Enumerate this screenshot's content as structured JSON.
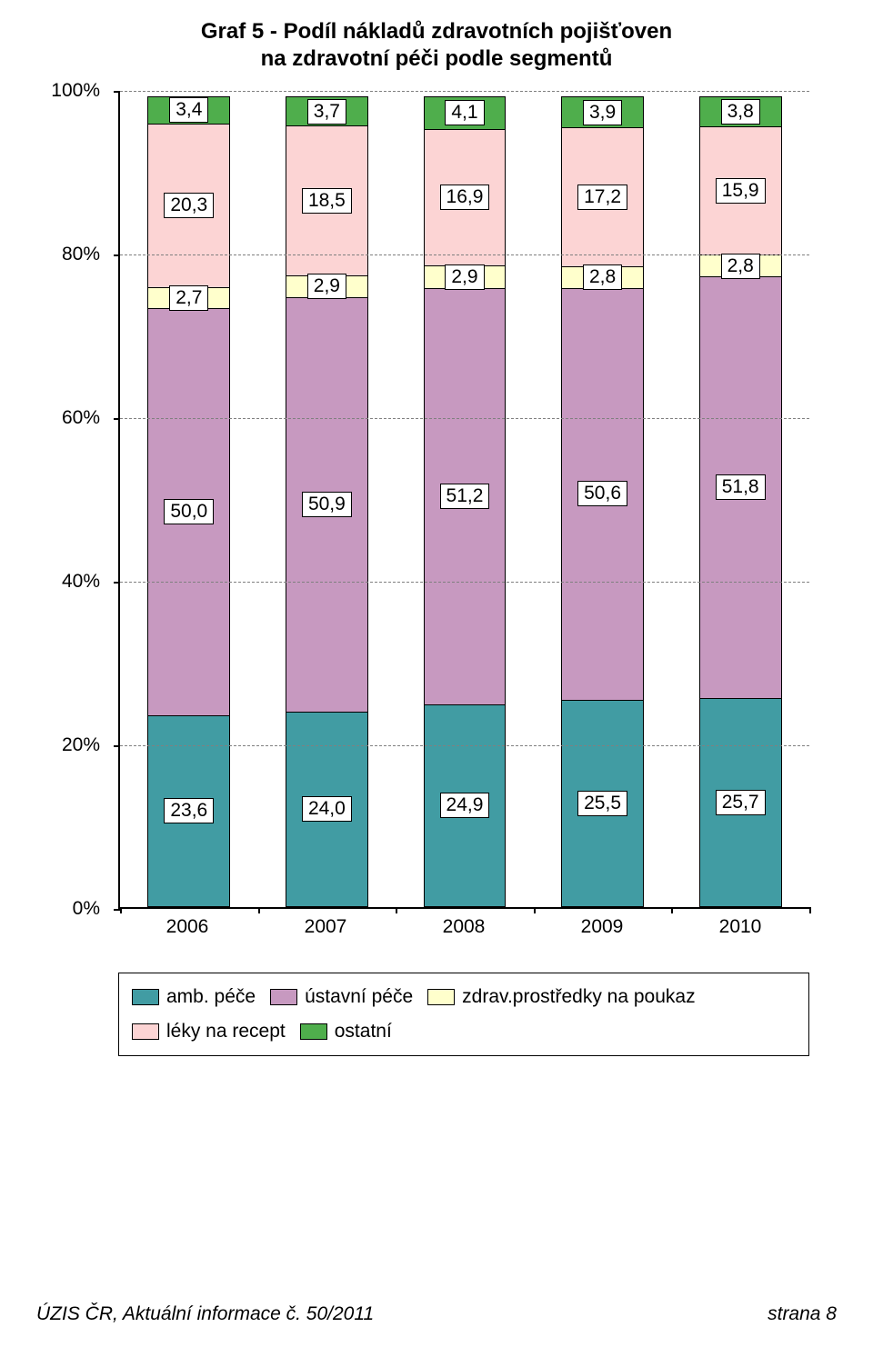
{
  "title": {
    "line1": "Graf 5 - Podíl nákladů zdravotních pojišťoven",
    "line2": "na zdravotní péči podle segmentů",
    "fontsize": 24,
    "fontweight": "bold",
    "color": "#000000"
  },
  "chart": {
    "type": "bar-stacked-100",
    "background_color": "#ffffff",
    "grid_color": "#808080",
    "axis_color": "#000000",
    "bar_width_pct": 12,
    "label_fontsize": 21,
    "tick_fontsize": 21,
    "xaxis_fontsize": 21,
    "ylim": [
      0,
      100
    ],
    "ytick_step": 20,
    "yticks": [
      "0%",
      "20%",
      "40%",
      "60%",
      "80%",
      "100%"
    ],
    "categories": [
      "2006",
      "2007",
      "2008",
      "2009",
      "2010"
    ],
    "series": [
      {
        "key": "amb",
        "label": "amb. péče",
        "color": "#419ca3",
        "border": "#000000"
      },
      {
        "key": "ustavni",
        "label": "ústavní péče",
        "color": "#c799c0",
        "border": "#000000"
      },
      {
        "key": "zdrav",
        "label": "zdrav.prostředky na poukaz",
        "color": "#ffffcc",
        "border": "#000000"
      },
      {
        "key": "leky",
        "label": "léky na recept",
        "color": "#fcd4d4",
        "border": "#000000"
      },
      {
        "key": "ostatni",
        "label": "ostatní",
        "color": "#4fae4c",
        "border": "#000000"
      }
    ],
    "data": [
      {
        "amb": 23.6,
        "ustavni": 50.0,
        "zdrav": 2.7,
        "leky": 20.3,
        "ostatni": 3.4,
        "labels": {
          "amb": "23,6",
          "ustavni": "50,0",
          "zdrav": "2,7",
          "leky": "20,3",
          "ostatni": "3,4"
        }
      },
      {
        "amb": 24.0,
        "ustavni": 50.9,
        "zdrav": 2.9,
        "leky": 18.5,
        "ostatni": 3.7,
        "labels": {
          "amb": "24,0",
          "ustavni": "50,9",
          "zdrav": "2,9",
          "leky": "18,5",
          "ostatni": "3,7"
        }
      },
      {
        "amb": 24.9,
        "ustavni": 51.2,
        "zdrav": 2.9,
        "leky": 16.9,
        "ostatni": 4.1,
        "labels": {
          "amb": "24,9",
          "ustavni": "51,2",
          "zdrav": "2,9",
          "leky": "16,9",
          "ostatni": "4,1"
        }
      },
      {
        "amb": 25.5,
        "ustavni": 50.6,
        "zdrav": 2.8,
        "leky": 17.2,
        "ostatni": 3.9,
        "labels": {
          "amb": "25,5",
          "ustavni": "50,6",
          "zdrav": "2,8",
          "leky": "17,2",
          "ostatni": "3,9"
        }
      },
      {
        "amb": 25.7,
        "ustavni": 51.8,
        "zdrav": 2.8,
        "leky": 15.9,
        "ostatni": 3.8,
        "labels": {
          "amb": "25,7",
          "ustavni": "51,8",
          "zdrav": "2,8",
          "leky": "15,9",
          "ostatni": "3,8"
        }
      }
    ]
  },
  "legend": {
    "border_color": "#000000",
    "fontsize": 21
  },
  "footer": {
    "left": "ÚZIS ČR, Aktuální informace č. 50/2011",
    "right": "strana 8",
    "fontsize": 21,
    "fontstyle": "italic"
  }
}
